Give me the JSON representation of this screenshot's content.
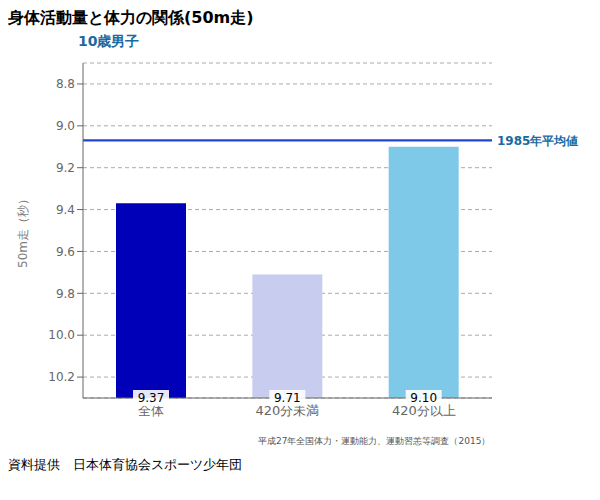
{
  "chart_data": {
    "type": "bar",
    "title": "身体活動量と体力の関係(50m走)",
    "subtitle": "10歳男子",
    "ylabel": "50m走（秒）",
    "categories": [
      "全体",
      "420分未満",
      "420分以上"
    ],
    "values": [
      9.37,
      9.71,
      9.1
    ],
    "value_labels": [
      "9.37",
      "9.71",
      "9.10"
    ],
    "data_labels": true,
    "colors": [
      "#0000b8",
      "#c8ccee",
      "#7ec8e8"
    ],
    "ylim": [
      10.3,
      8.7
    ],
    "yticks": [
      8.8,
      {
        "value": 9.0,
        "label": "9.0"
      },
      9.2,
      9.4,
      9.6,
      9.8,
      {
        "value": 10.0,
        "label": "10.0"
      },
      10.2
    ],
    "grid": true,
    "reference_line": 9.07,
    "reference_label": "1985年平均値",
    "source_note": "平成27年全国体力・運動能力、運動習恙等調査（2015）",
    "credit": "資料提供　日本体育協会スポーツ少年団"
  }
}
